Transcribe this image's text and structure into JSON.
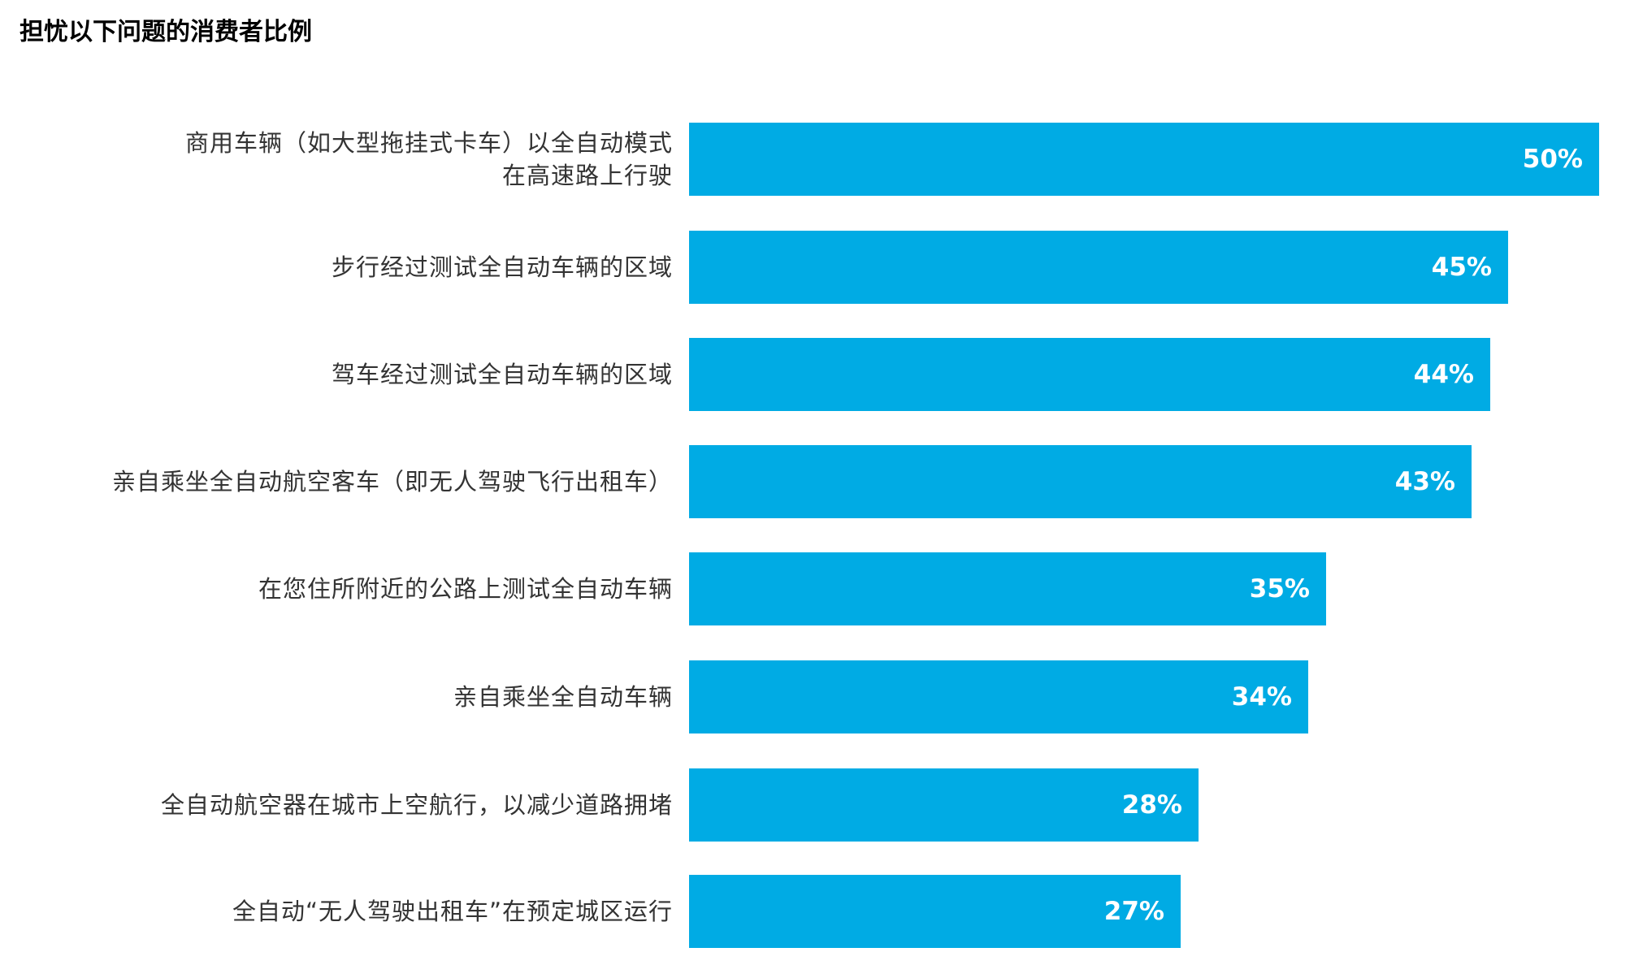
{
  "title": "担忧以下问题的消费者比例",
  "bar_color": "#00abe4",
  "chart_data": {
    "type": "bar",
    "orientation": "horizontal",
    "title": "担忧以下问题的消费者比例",
    "categories": [
      "商用车辆（如大型拖挂式卡车）以全自动模式在高速路上行驶",
      "步行经过测试全自动车辆的区域",
      "驾车经过测试全自动车辆的区域",
      "亲自乘坐全自动航空客车（即无人驾驶飞行出租车）",
      "在您住所附近的公路上测试全自动车辆",
      "亲自乘坐全自动车辆",
      "全自动航空器在城市上空航行，以减少道路拥堵",
      "全自动“无人驾驶出租车”在预定城区运行"
    ],
    "values": [
      50,
      45,
      44,
      43,
      35,
      34,
      28,
      27
    ],
    "unit": "%",
    "xlabel": "",
    "ylabel": "",
    "xlim": [
      0,
      50
    ],
    "grid": false,
    "legend": "none"
  },
  "rows": [
    {
      "label_line1": "商用车辆（如大型拖挂式卡车）以全自动模式",
      "label_line2": "在高速路上行驶",
      "value": "50%",
      "pct": 50
    },
    {
      "label_line1": "步行经过测试全自动车辆的区域",
      "label_line2": "",
      "value": "45%",
      "pct": 45
    },
    {
      "label_line1": "驾车经过测试全自动车辆的区域",
      "label_line2": "",
      "value": "44%",
      "pct": 44
    },
    {
      "label_line1": "亲自乘坐全自动航空客车（即无人驾驶飞行出租车）",
      "label_line2": "",
      "value": "43%",
      "pct": 43
    },
    {
      "label_line1": "在您住所附近的公路上测试全自动车辆",
      "label_line2": "",
      "value": "35%",
      "pct": 35
    },
    {
      "label_line1": "亲自乘坐全自动车辆",
      "label_line2": "",
      "value": "34%",
      "pct": 34
    },
    {
      "label_line1": "全自动航空器在城市上空航行，以减少道路拥堵",
      "label_line2": "",
      "value": "28%",
      "pct": 28
    },
    {
      "label_line1": "全自动“无人驾驶出租车”在预定城区运行",
      "label_line2": "",
      "value": "27%",
      "pct": 27
    }
  ]
}
